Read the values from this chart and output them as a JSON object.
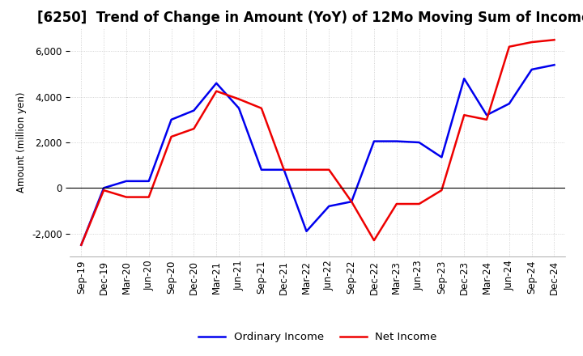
{
  "title": "[6250]  Trend of Change in Amount (YoY) of 12Mo Moving Sum of Incomes",
  "ylabel": "Amount (million yen)",
  "x_labels": [
    "Sep-19",
    "Dec-19",
    "Mar-20",
    "Jun-20",
    "Sep-20",
    "Dec-20",
    "Mar-21",
    "Jun-21",
    "Sep-21",
    "Dec-21",
    "Mar-22",
    "Jun-22",
    "Sep-22",
    "Dec-22",
    "Mar-23",
    "Jun-23",
    "Sep-23",
    "Dec-23",
    "Mar-24",
    "Jun-24",
    "Sep-24",
    "Dec-24"
  ],
  "ordinary_income": [
    -2500,
    0,
    300,
    300,
    3000,
    3400,
    4600,
    3500,
    800,
    800,
    -1900,
    -800,
    -600,
    2050,
    2050,
    2000,
    1350,
    4800,
    3200,
    3700,
    5200,
    5400
  ],
  "net_income": [
    -2500,
    -100,
    -400,
    -400,
    2250,
    2600,
    4250,
    3900,
    3500,
    800,
    800,
    800,
    -600,
    -2300,
    -700,
    -700,
    -100,
    3200,
    3000,
    6200,
    6400,
    6500
  ],
  "ordinary_income_color": "#0000ee",
  "net_income_color": "#ee0000",
  "ylim": [
    -3000,
    7000
  ],
  "yticks": [
    -2000,
    0,
    2000,
    4000,
    6000
  ],
  "background_color": "#ffffff",
  "grid_color": "#c8c8c8",
  "title_fontsize": 12,
  "axis_fontsize": 8.5,
  "legend_fontsize": 9.5,
  "line_width": 1.8
}
